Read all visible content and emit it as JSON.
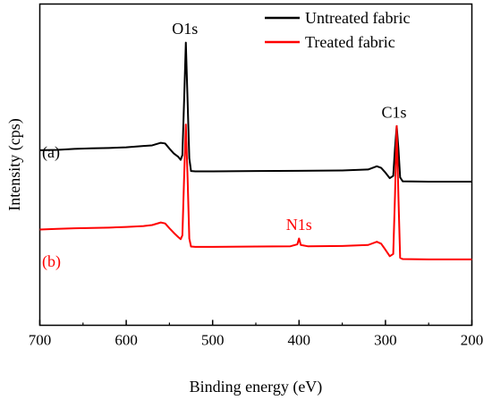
{
  "chart_data": {
    "type": "line",
    "title": "",
    "xlabel": "Binding energy (eV)",
    "ylabel": "Intensity (cps)",
    "xlim": [
      700,
      200
    ],
    "x_reversed": true,
    "x_ticks": [
      700,
      600,
      500,
      400,
      300,
      200
    ],
    "x_tick_labels": [
      "700",
      "600",
      "500",
      "400",
      "300",
      "200"
    ],
    "y_ticks": "none",
    "ylim": [
      0,
      100
    ],
    "grid": false,
    "legend_position": "top-right",
    "series": [
      {
        "name": "Untreated fabric",
        "tag": "(a)",
        "color": "#000000",
        "points": [
          [
            700,
            54.5
          ],
          [
            680,
            54.6
          ],
          [
            660,
            54.9
          ],
          [
            640,
            55.1
          ],
          [
            620,
            55.2
          ],
          [
            600,
            55.4
          ],
          [
            580,
            55.8
          ],
          [
            570,
            56.0
          ],
          [
            560,
            56.8
          ],
          [
            555,
            56.6
          ],
          [
            550,
            55.0
          ],
          [
            545,
            53.5
          ],
          [
            540,
            52.5
          ],
          [
            537,
            51.5
          ],
          [
            535,
            53.0
          ],
          [
            533,
            70.0
          ],
          [
            531,
            88.0
          ],
          [
            529,
            70.0
          ],
          [
            527,
            52.0
          ],
          [
            525,
            48.0
          ],
          [
            520,
            47.9
          ],
          [
            500,
            47.9
          ],
          [
            450,
            48.0
          ],
          [
            400,
            48.1
          ],
          [
            350,
            48.2
          ],
          [
            320,
            48.5
          ],
          [
            310,
            49.5
          ],
          [
            305,
            49.0
          ],
          [
            300,
            47.5
          ],
          [
            295,
            45.8
          ],
          [
            291,
            46.5
          ],
          [
            289,
            55.0
          ],
          [
            287,
            62.0
          ],
          [
            285,
            55.0
          ],
          [
            283,
            46.0
          ],
          [
            280,
            44.8
          ],
          [
            250,
            44.7
          ],
          [
            200,
            44.7
          ]
        ]
      },
      {
        "name": "Treated fabric",
        "tag": "(b)",
        "color": "#ff0000",
        "points": [
          [
            700,
            29.8
          ],
          [
            680,
            30.0
          ],
          [
            660,
            30.2
          ],
          [
            640,
            30.3
          ],
          [
            620,
            30.4
          ],
          [
            600,
            30.6
          ],
          [
            580,
            30.9
          ],
          [
            570,
            31.2
          ],
          [
            560,
            32.0
          ],
          [
            555,
            31.7
          ],
          [
            550,
            30.2
          ],
          [
            545,
            28.8
          ],
          [
            540,
            27.5
          ],
          [
            537,
            26.8
          ],
          [
            535,
            28.0
          ],
          [
            533,
            46.0
          ],
          [
            531,
            62.5
          ],
          [
            529,
            46.0
          ],
          [
            527,
            27.0
          ],
          [
            525,
            24.5
          ],
          [
            520,
            24.4
          ],
          [
            500,
            24.4
          ],
          [
            450,
            24.5
          ],
          [
            410,
            24.6
          ],
          [
            402,
            25.2
          ],
          [
            400,
            27.0
          ],
          [
            398,
            25.0
          ],
          [
            390,
            24.6
          ],
          [
            350,
            24.7
          ],
          [
            320,
            25.0
          ],
          [
            310,
            26.0
          ],
          [
            305,
            25.4
          ],
          [
            300,
            23.5
          ],
          [
            295,
            21.5
          ],
          [
            291,
            22.2
          ],
          [
            289,
            40.0
          ],
          [
            287,
            62.0
          ],
          [
            285,
            40.0
          ],
          [
            283,
            21.0
          ],
          [
            280,
            20.6
          ],
          [
            250,
            20.5
          ],
          [
            200,
            20.5
          ]
        ]
      }
    ],
    "annotations": [
      {
        "text": "O1s",
        "x": 532,
        "y": 89,
        "color": "#000000"
      },
      {
        "text": "C1s",
        "x": 290,
        "y": 63,
        "color": "#000000"
      },
      {
        "text": "N1s",
        "x": 400,
        "y": 28,
        "color": "#ff0000"
      }
    ]
  }
}
